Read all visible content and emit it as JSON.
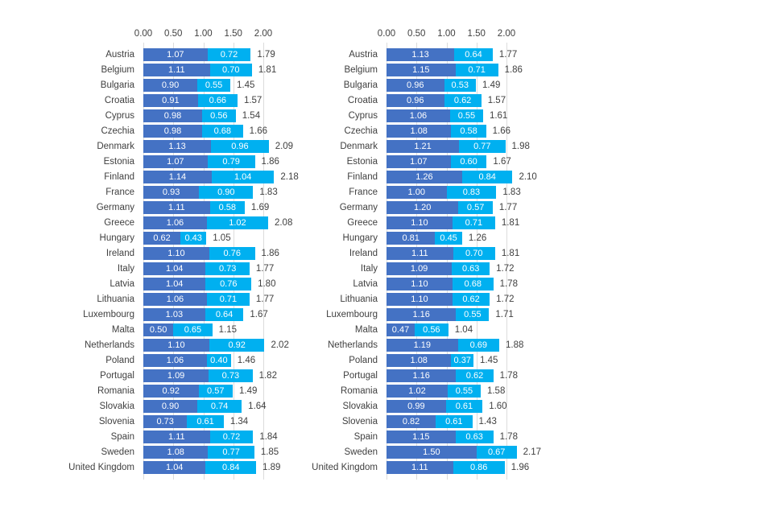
{
  "page": {
    "background": "#ffffff"
  },
  "colors": {
    "segment_primary": "#4472c4",
    "segment_secondary": "#00b0f0",
    "gridline": "#dcdcdc",
    "axis_text": "#404040",
    "category_text": "#404040",
    "total_text": "#404040",
    "value_text": "#ffffff"
  },
  "chart_data": [
    {
      "type": "bar",
      "orientation": "horizontal",
      "stacked": true,
      "grid": true,
      "axis_position": "top",
      "xlim": [
        0,
        2.0
      ],
      "axis_ticks": [
        "0.00",
        "0.50",
        "1.00",
        "1.50",
        "2.00"
      ],
      "categories": [
        "Austria",
        "Belgium",
        "Bulgaria",
        "Croatia",
        "Cyprus",
        "Czechia",
        "Denmark",
        "Estonia",
        "Finland",
        "France",
        "Germany",
        "Greece",
        "Hungary",
        "Ireland",
        "Italy",
        "Latvia",
        "Lithuania",
        "Luxembourg",
        "Malta",
        "Netherlands",
        "Poland",
        "Portugal",
        "Romania",
        "Slovakia",
        "Slovenia",
        "Spain",
        "Sweden",
        "United Kingdom"
      ],
      "series": [
        {
          "color": "#4472c4",
          "values": [
            "1.07",
            "1.11",
            "0.90",
            "0.91",
            "0.98",
            "0.98",
            "1.13",
            "1.07",
            "1.14",
            "0.93",
            "1.11",
            "1.06",
            "0.62",
            "1.10",
            "1.04",
            "1.04",
            "1.06",
            "1.03",
            "0.50",
            "1.10",
            "1.06",
            "1.09",
            "0.92",
            "0.90",
            "0.73",
            "1.11",
            "1.08",
            "1.04"
          ]
        },
        {
          "color": "#00b0f0",
          "values": [
            "0.72",
            "0.70",
            "0.55",
            "0.66",
            "0.56",
            "0.68",
            "0.96",
            "0.79",
            "1.04",
            "0.90",
            "0.58",
            "1.02",
            "0.43",
            "0.76",
            "0.73",
            "0.76",
            "0.71",
            "0.64",
            "0.65",
            "0.92",
            "0.40",
            "0.73",
            "0.57",
            "0.74",
            "0.61",
            "0.72",
            "0.77",
            "0.84"
          ]
        }
      ],
      "totals": [
        "1.79",
        "1.81",
        "1.45",
        "1.57",
        "1.54",
        "1.66",
        "2.09",
        "1.86",
        "2.18",
        "1.83",
        "1.69",
        "2.08",
        "1.05",
        "1.86",
        "1.77",
        "1.80",
        "1.77",
        "1.67",
        "1.15",
        "2.02",
        "1.46",
        "1.82",
        "1.49",
        "1.64",
        "1.34",
        "1.84",
        "1.85",
        "1.89"
      ]
    },
    {
      "type": "bar",
      "orientation": "horizontal",
      "stacked": true,
      "grid": true,
      "axis_position": "top",
      "xlim": [
        0,
        2.0
      ],
      "axis_ticks": [
        "0.00",
        "0.50",
        "1.00",
        "1.50",
        "2.00"
      ],
      "categories": [
        "Austria",
        "Belgium",
        "Bulgaria",
        "Croatia",
        "Cyprus",
        "Czechia",
        "Denmark",
        "Estonia",
        "Finland",
        "France",
        "Germany",
        "Greece",
        "Hungary",
        "Ireland",
        "Italy",
        "Latvia",
        "Lithuania",
        "Luxembourg",
        "Malta",
        "Netherlands",
        "Poland",
        "Portugal",
        "Romania",
        "Slovakia",
        "Slovenia",
        "Spain",
        "Sweden",
        "United Kingdom"
      ],
      "series": [
        {
          "color": "#4472c4",
          "values": [
            "1.13",
            "1.15",
            "0.96",
            "0.96",
            "1.06",
            "1.08",
            "1.21",
            "1.07",
            "1.26",
            "1.00",
            "1.20",
            "1.10",
            "0.81",
            "1.11",
            "1.09",
            "1.10",
            "1.10",
            "1.16",
            "0.47",
            "1.19",
            "1.08",
            "1.16",
            "1.02",
            "0.99",
            "0.82",
            "1.15",
            "1.50",
            "1.11"
          ]
        },
        {
          "color": "#00b0f0",
          "values": [
            "0.64",
            "0.71",
            "0.53",
            "0.62",
            "0.55",
            "0.58",
            "0.77",
            "0.60",
            "0.84",
            "0.83",
            "0.57",
            "0.71",
            "0.45",
            "0.70",
            "0.63",
            "0.68",
            "0.62",
            "0.55",
            "0.56",
            "0.69",
            "0.37",
            "0.62",
            "0.55",
            "0.61",
            "0.61",
            "0.63",
            "0.67",
            "0.86"
          ]
        }
      ],
      "totals": [
        "1.77",
        "1.86",
        "1.49",
        "1.57",
        "1.61",
        "1.66",
        "1.98",
        "1.67",
        "2.10",
        "1.83",
        "1.77",
        "1.81",
        "1.26",
        "1.81",
        "1.72",
        "1.78",
        "1.72",
        "1.71",
        "1.04",
        "1.88",
        "1.45",
        "1.78",
        "1.58",
        "1.60",
        "1.43",
        "1.78",
        "2.17",
        "1.96"
      ]
    }
  ]
}
